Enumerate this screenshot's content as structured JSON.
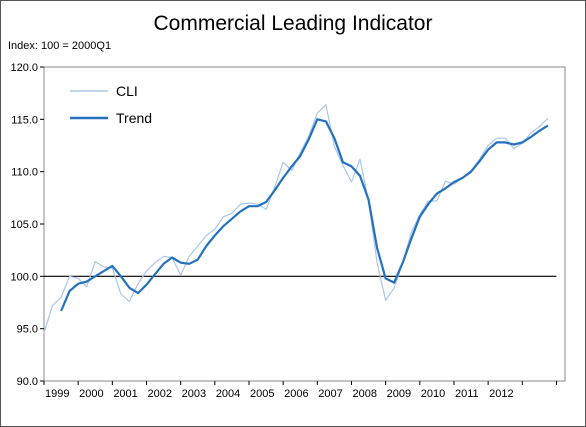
{
  "chart_data": {
    "type": "line",
    "title": "Commercial Leading Indicator",
    "subtitle": "Index: 100 = 2000Q1",
    "xlabel": "",
    "ylabel": "",
    "x_tick_labels": [
      "1999",
      "2000",
      "2001",
      "2002",
      "2003",
      "2004",
      "2005",
      "2006",
      "2007",
      "2008",
      "2009",
      "2010",
      "2011",
      "2012"
    ],
    "y_tick_labels": [
      "90.0",
      "95.0",
      "100.0",
      "105.0",
      "110.0",
      "115.0",
      "120.0"
    ],
    "ylim": [
      90,
      120
    ],
    "xlim": [
      1999.0,
      2014.25
    ],
    "grid": false,
    "legend_position": "top-left",
    "reference_line": {
      "y": 100,
      "x_start": 1999.0,
      "x_end": 2014.0,
      "color": "#000000"
    },
    "series": [
      {
        "name": "CLI",
        "color": "#a9c6ea",
        "x": [
          1999.0,
          1999.25,
          1999.5,
          1999.75,
          2000.0,
          2000.25,
          2000.5,
          2000.75,
          2001.0,
          2001.25,
          2001.5,
          2001.75,
          2002.0,
          2002.25,
          2002.5,
          2002.75,
          2003.0,
          2003.25,
          2003.5,
          2003.75,
          2004.0,
          2004.25,
          2004.5,
          2004.75,
          2005.0,
          2005.25,
          2005.5,
          2005.75,
          2006.0,
          2006.25,
          2006.5,
          2006.75,
          2007.0,
          2007.25,
          2007.5,
          2007.75,
          2008.0,
          2008.25,
          2008.5,
          2008.75,
          2009.0,
          2009.25,
          2009.5,
          2009.75,
          2010.0,
          2010.25,
          2010.5,
          2010.75,
          2011.0,
          2011.25,
          2011.5,
          2011.75,
          2012.0,
          2012.25,
          2012.5,
          2012.75,
          2013.0,
          2013.25,
          2013.5,
          2013.75
        ],
        "values": [
          94.6,
          97.2,
          98.0,
          100.0,
          99.8,
          99.0,
          101.4,
          100.9,
          100.8,
          98.3,
          97.6,
          99.3,
          100.5,
          101.3,
          101.9,
          101.8,
          100.1,
          101.9,
          102.9,
          103.9,
          104.5,
          105.7,
          106.0,
          106.9,
          107.0,
          106.9,
          106.4,
          108.5,
          110.9,
          110.1,
          111.8,
          113.4,
          115.6,
          116.4,
          112.4,
          110.6,
          109.0,
          111.2,
          107.1,
          101.3,
          97.7,
          98.9,
          101.3,
          104.2,
          105.9,
          107.2,
          107.2,
          109.1,
          108.8,
          109.4,
          110.1,
          111.2,
          112.5,
          113.2,
          113.2,
          112.2,
          112.7,
          113.7,
          114.3,
          115.1
        ]
      },
      {
        "name": "Trend",
        "color": "#2471c0",
        "x": [
          1999.5,
          1999.75,
          2000.0,
          2000.25,
          2000.5,
          2000.75,
          2001.0,
          2001.25,
          2001.5,
          2001.75,
          2002.0,
          2002.25,
          2002.5,
          2002.75,
          2003.0,
          2003.25,
          2003.5,
          2003.75,
          2004.0,
          2004.25,
          2004.5,
          2004.75,
          2005.0,
          2005.25,
          2005.5,
          2005.75,
          2006.0,
          2006.25,
          2006.5,
          2006.75,
          2007.0,
          2007.25,
          2007.5,
          2007.75,
          2008.0,
          2008.25,
          2008.5,
          2008.75,
          2009.0,
          2009.25,
          2009.5,
          2009.75,
          2010.0,
          2010.25,
          2010.5,
          2010.75,
          2011.0,
          2011.25,
          2011.5,
          2011.75,
          2012.0,
          2012.25,
          2012.5,
          2012.75,
          2013.0,
          2013.25,
          2013.5,
          2013.75
        ],
        "values": [
          96.7,
          98.6,
          99.3,
          99.5,
          100.0,
          100.5,
          101.0,
          100.0,
          98.9,
          98.4,
          99.2,
          100.2,
          101.2,
          101.8,
          101.3,
          101.2,
          101.6,
          102.9,
          103.9,
          104.8,
          105.5,
          106.2,
          106.7,
          106.7,
          107.1,
          108.2,
          109.4,
          110.5,
          111.5,
          113.1,
          115.0,
          114.8,
          113.2,
          110.9,
          110.5,
          109.6,
          107.3,
          102.7,
          99.8,
          99.4,
          101.3,
          103.6,
          105.7,
          106.9,
          107.9,
          108.4,
          109.0,
          109.4,
          110.0,
          111.0,
          112.1,
          112.8,
          112.8,
          112.6,
          112.8,
          113.3,
          113.9,
          114.4
        ]
      }
    ]
  }
}
